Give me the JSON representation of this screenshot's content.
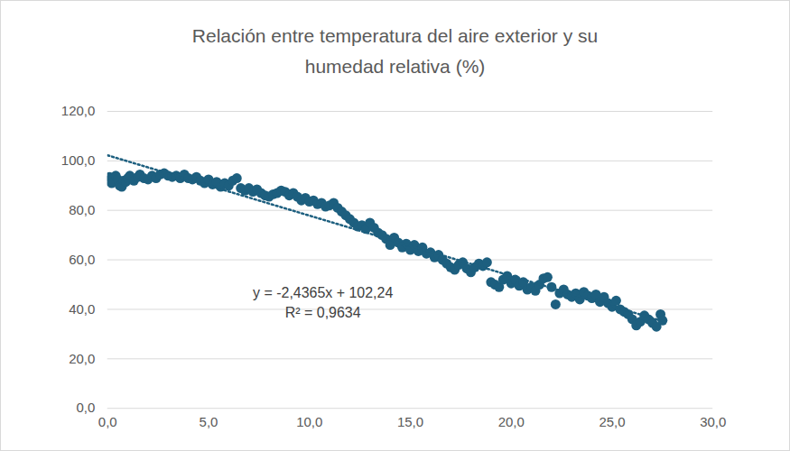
{
  "chart_data": {
    "type": "scatter",
    "title": "Relación entre temperatura del aire exterior y su humedad relativa (%)",
    "color": "#1d5f7f",
    "marker": "circle",
    "grid": true,
    "xlim": [
      0,
      30
    ],
    "ylim": [
      0,
      120
    ],
    "xticks": [
      {
        "value": 0,
        "label": "0,0"
      },
      {
        "value": 5,
        "label": "5,0"
      },
      {
        "value": 10,
        "label": "10,0"
      },
      {
        "value": 15,
        "label": "15,0"
      },
      {
        "value": 20,
        "label": "20,0"
      },
      {
        "value": 25,
        "label": "25,0"
      },
      {
        "value": 30,
        "label": "30,0"
      }
    ],
    "yticks": [
      {
        "value": 0,
        "label": "0,0"
      },
      {
        "value": 20,
        "label": "20,0"
      },
      {
        "value": 40,
        "label": "40,0"
      },
      {
        "value": 60,
        "label": "60,0"
      },
      {
        "value": 80,
        "label": "80,0"
      },
      {
        "value": 100,
        "label": "100,0"
      },
      {
        "value": 120,
        "label": "120,0"
      }
    ],
    "annotations": [
      "y = -2,4365x + 102,24",
      "R² = 0,9634"
    ],
    "trendline": {
      "x": [
        0,
        27.5
      ],
      "values": [
        102.24,
        35.24
      ],
      "line_style": "dotted",
      "color": "#1d5f7f"
    },
    "x": [
      0.0,
      0.1,
      0.2,
      0.4,
      0.5,
      0.6,
      0.7,
      0.8,
      0.9,
      1.0,
      1.1,
      1.3,
      1.5,
      1.6,
      1.8,
      2.0,
      2.2,
      2.4,
      2.6,
      2.8,
      3.0,
      3.2,
      3.4,
      3.6,
      3.8,
      4.0,
      4.2,
      4.4,
      4.6,
      4.8,
      5.0,
      5.2,
      5.4,
      5.6,
      5.8,
      6.0,
      6.2,
      6.4,
      6.6,
      6.8,
      7.0,
      7.2,
      7.4,
      7.6,
      7.8,
      8.0,
      8.2,
      8.4,
      8.6,
      8.8,
      9.0,
      9.2,
      9.4,
      9.6,
      9.8,
      10.0,
      10.2,
      10.4,
      10.6,
      10.8,
      11.0,
      11.2,
      11.4,
      11.6,
      11.8,
      12.0,
      12.2,
      12.4,
      12.6,
      12.8,
      13.0,
      13.2,
      13.4,
      13.6,
      13.8,
      14.0,
      14.2,
      14.4,
      14.6,
      14.8,
      15.0,
      15.2,
      15.4,
      15.6,
      15.8,
      16.0,
      16.2,
      16.4,
      16.6,
      16.8,
      17.0,
      17.2,
      17.4,
      17.6,
      17.8,
      18.0,
      18.2,
      18.4,
      18.6,
      18.8,
      19.0,
      19.2,
      19.4,
      19.6,
      19.8,
      20.0,
      20.2,
      20.4,
      20.6,
      20.8,
      21.0,
      21.2,
      21.4,
      21.6,
      21.8,
      22.0,
      22.2,
      22.4,
      22.6,
      22.8,
      23.0,
      23.2,
      23.4,
      23.6,
      23.8,
      24.0,
      24.2,
      24.4,
      24.6,
      24.8,
      25.0,
      25.2,
      25.4,
      25.6,
      25.8,
      26.0,
      26.2,
      26.4,
      26.6,
      26.8,
      27.0,
      27.2,
      27.4,
      27.5
    ],
    "values": [
      92,
      93.5,
      91,
      94,
      92.5,
      90,
      89.5,
      92,
      91.5,
      93,
      94,
      92,
      93.5,
      94.5,
      93,
      92.5,
      94,
      93,
      94.5,
      95,
      94,
      93.5,
      94,
      93,
      94.5,
      93,
      92.5,
      93.5,
      92,
      91,
      92.5,
      90.5,
      91.5,
      89.5,
      91,
      90,
      92,
      93,
      89,
      88,
      89,
      87.5,
      88.5,
      87,
      86,
      85.5,
      86.5,
      87,
      88,
      87.5,
      86,
      87,
      85.5,
      84,
      85,
      83.5,
      84,
      82.5,
      83,
      81.5,
      82,
      83,
      81,
      79.5,
      78,
      76.5,
      75,
      73.5,
      74,
      72.5,
      75,
      73,
      71,
      70,
      68.5,
      66,
      69,
      67,
      65,
      66.5,
      64,
      66,
      63.5,
      65,
      62.5,
      63,
      61,
      62,
      60,
      58.5,
      57,
      56,
      58,
      59,
      56.5,
      55,
      57,
      58.5,
      57.5,
      59,
      51,
      50,
      49,
      52,
      53.5,
      50.5,
      52,
      49.5,
      51,
      48,
      49,
      47.5,
      50,
      52.5,
      53,
      49,
      42,
      46.5,
      48,
      46,
      45,
      46.5,
      44,
      47,
      45.5,
      44.5,
      46,
      43,
      45,
      42.5,
      41,
      43.5,
      40,
      39,
      38,
      36,
      33.5,
      35,
      37.5,
      36,
      34.5,
      33,
      38,
      35.5
    ]
  }
}
